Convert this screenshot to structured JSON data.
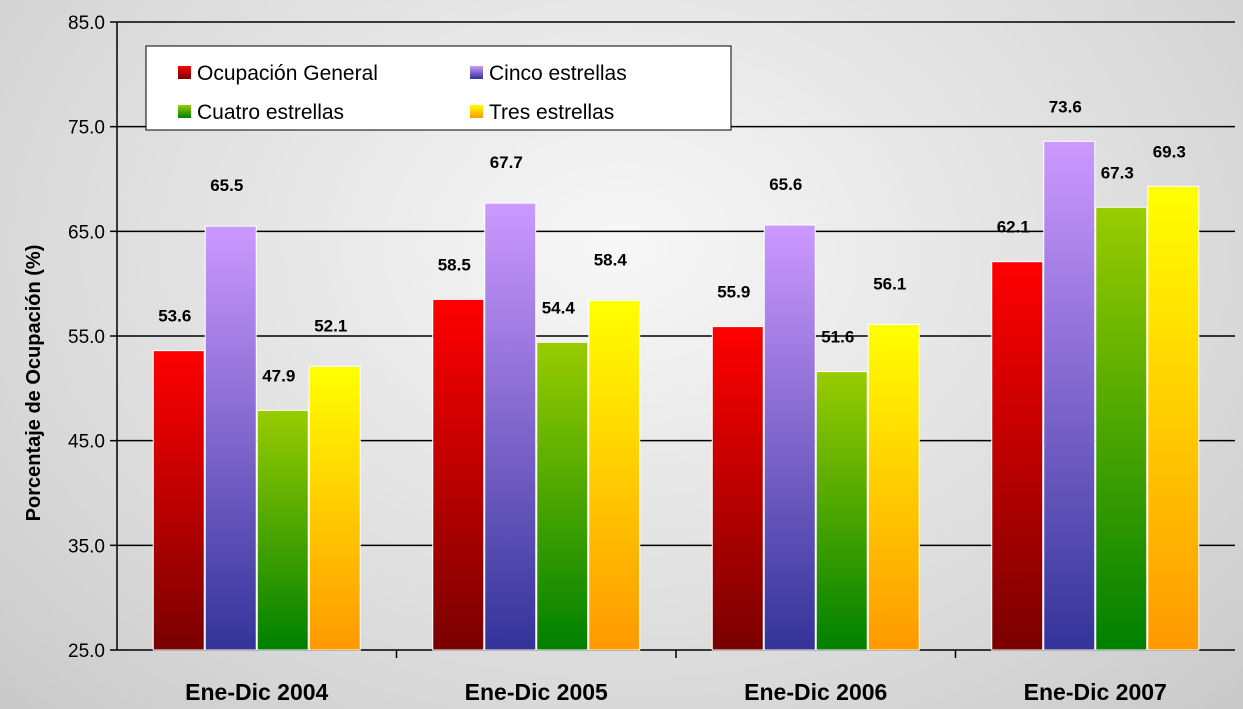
{
  "chart_data": {
    "type": "bar",
    "title": "",
    "xlabel": "",
    "ylabel": "Porcentaje de Ocupación (%)",
    "ylim": [
      25.0,
      85.0
    ],
    "yticks": [
      "25.0",
      "35.0",
      "45.0",
      "55.0",
      "65.0",
      "75.0",
      "85.0"
    ],
    "grid": true,
    "legend_position": "top-left",
    "categories": [
      "Ene-Dic 2004",
      "Ene-Dic 2005",
      "Ene-Dic 2006",
      "Ene-Dic 2007"
    ],
    "series": [
      {
        "name": "Ocupación General",
        "values": [
          53.6,
          58.5,
          55.9,
          62.1
        ],
        "color_top": "#ff0000",
        "color_bottom": "#7a0000"
      },
      {
        "name": "Cinco estrellas",
        "values": [
          65.5,
          67.7,
          65.6,
          73.6
        ],
        "color_top": "#cc99ff",
        "color_bottom": "#333399"
      },
      {
        "name": "Cuatro estrellas",
        "values": [
          47.9,
          54.4,
          51.6,
          67.3
        ],
        "color_top": "#99cc00",
        "color_bottom": "#008000"
      },
      {
        "name": "Tres estrellas",
        "values": [
          52.1,
          58.4,
          56.1,
          69.3
        ],
        "color_top": "#ffff00",
        "color_bottom": "#ff9900"
      }
    ],
    "data_labels": [
      [
        "53.6",
        "58.5",
        "55.9",
        "62.1"
      ],
      [
        "65.5",
        "67.7",
        "65.6",
        "73.6"
      ],
      [
        "47.9",
        "54.4",
        "51.6",
        "67.3"
      ],
      [
        "52.1",
        "58.4",
        "56.1",
        "69.3"
      ]
    ]
  }
}
